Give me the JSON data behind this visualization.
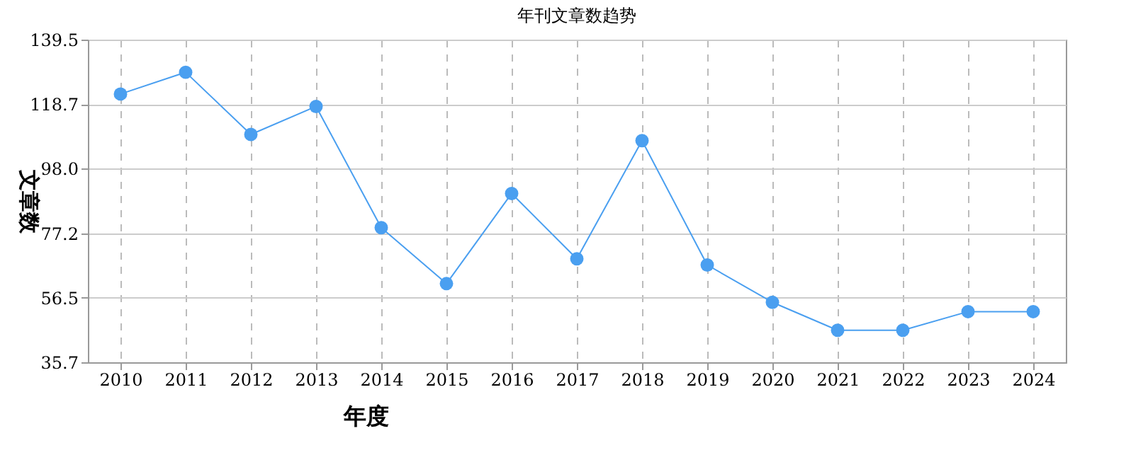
{
  "chart_data": {
    "type": "line",
    "title": "年刊文章数趋势",
    "xlabel": "年度",
    "ylabel": "文章数",
    "categories": [
      "2010",
      "2011",
      "2012",
      "2013",
      "2014",
      "2015",
      "2016",
      "2017",
      "2018",
      "2019",
      "2020",
      "2021",
      "2022",
      "2023",
      "2024"
    ],
    "series": [
      {
        "color": "#4a9ff0",
        "values": [
          122,
          129,
          109,
          118,
          79,
          61,
          90,
          69,
          107,
          67,
          55,
          46,
          46,
          52,
          52
        ]
      }
    ],
    "ylim": [
      35.7,
      139.5
    ],
    "yticks": [
      35.7,
      56.5,
      77.2,
      {
        "value": 98,
        "label": "98.0"
      },
      118.7,
      139.5
    ],
    "grid": true,
    "marker": "circle",
    "line_style": "solid"
  }
}
